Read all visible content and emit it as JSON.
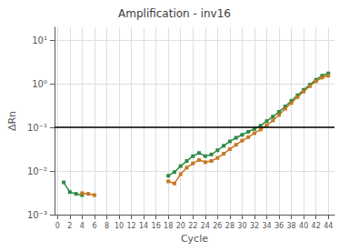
{
  "chart_data": {
    "type": "line",
    "title": "Amplification - inv16",
    "x_label": "Cycle",
    "y_label": "ΔRn",
    "log": "y",
    "grid": true,
    "xlim": [
      -0.5,
      45
    ],
    "xticks": [
      0,
      2,
      4,
      6,
      8,
      10,
      12,
      14,
      16,
      18,
      20,
      22,
      24,
      26,
      28,
      30,
      32,
      34,
      36,
      38,
      40,
      42,
      44
    ],
    "ylim": [
      0.001,
      20
    ],
    "yticks": [
      {
        "value": 0.001,
        "label": "10⁻³"
      },
      {
        "value": 0.01,
        "label": "10⁻²"
      },
      {
        "value": 0.1,
        "label": "10⁻¹"
      },
      {
        "value": 1.0,
        "label": "10⁰"
      },
      {
        "value": 10.0,
        "label": "10¹"
      }
    ],
    "x": [
      1,
      2,
      3,
      4,
      5,
      6,
      7,
      8,
      9,
      10,
      11,
      12,
      13,
      14,
      15,
      16,
      17,
      18,
      19,
      20,
      21,
      22,
      23,
      24,
      25,
      26,
      27,
      28,
      29,
      30,
      31,
      32,
      33,
      34,
      35,
      36,
      37,
      38,
      39,
      40,
      41,
      42,
      43,
      44
    ],
    "series": [
      {
        "color": "#2e8b45",
        "marker": "square",
        "values": [
          0.0055,
          0.0033,
          0.003,
          0.0028,
          null,
          null,
          null,
          null,
          null,
          null,
          null,
          null,
          null,
          null,
          null,
          null,
          null,
          0.0078,
          0.0095,
          0.013,
          0.017,
          0.022,
          0.026,
          0.022,
          0.024,
          0.03,
          0.038,
          0.048,
          0.058,
          0.068,
          0.08,
          0.093,
          0.11,
          0.14,
          0.178,
          0.23,
          0.305,
          0.41,
          0.55,
          0.73,
          0.96,
          1.25,
          1.55,
          1.75
        ]
      },
      {
        "color": "#c87820",
        "marker": "square",
        "values": [
          null,
          null,
          null,
          0.0031,
          0.003,
          0.0028,
          null,
          null,
          null,
          null,
          null,
          null,
          null,
          null,
          null,
          null,
          null,
          0.0058,
          0.0052,
          0.0085,
          0.012,
          0.015,
          0.018,
          0.016,
          0.017,
          0.02,
          0.025,
          0.032,
          0.04,
          0.05,
          0.06,
          0.074,
          0.09,
          0.112,
          0.145,
          0.195,
          0.27,
          0.365,
          0.5,
          0.67,
          0.89,
          1.15,
          1.4,
          1.55
        ]
      }
    ],
    "threshold": {
      "value": 0.1,
      "color": "#000000"
    }
  }
}
